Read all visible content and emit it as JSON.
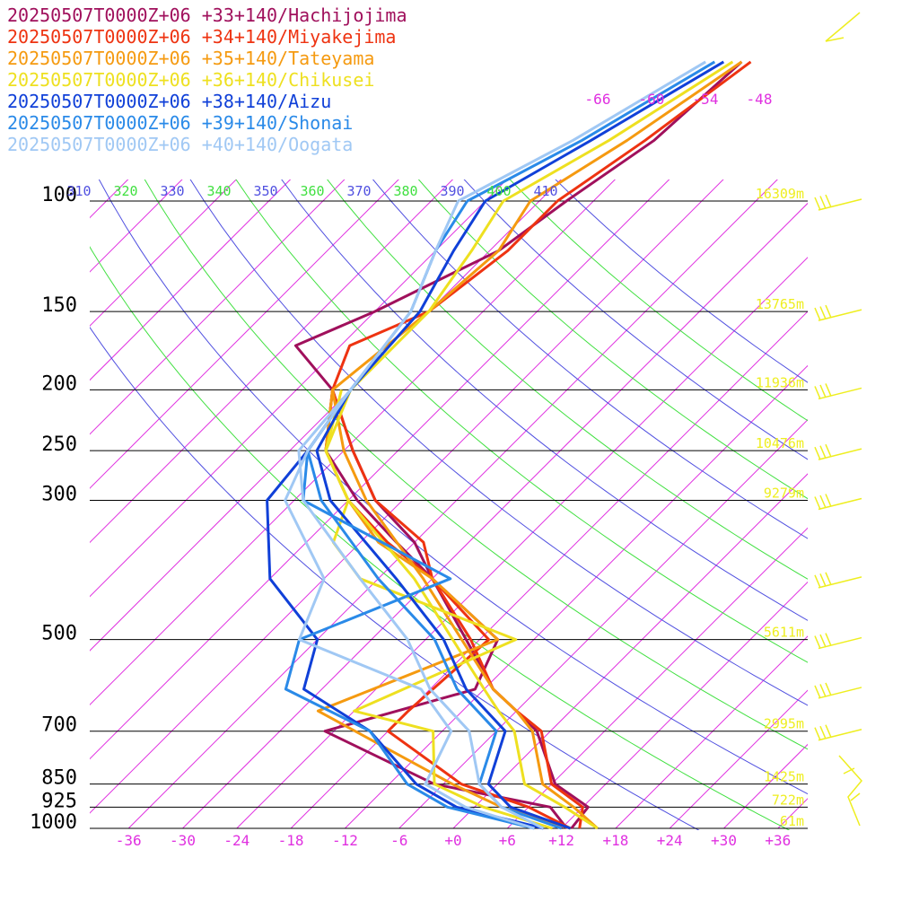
{
  "chart_data": {
    "type": "line",
    "chart_kind": "skew-T log-P sounding",
    "legend": [
      {
        "label": "20250507T0000Z+06 +33+140/Hachijojima",
        "color": "#a0105c"
      },
      {
        "label": "20250507T0000Z+06 +34+140/Miyakejima",
        "color": "#ee3311"
      },
      {
        "label": "20250507T0000Z+06 +35+140/Tateyama",
        "color": "#f59a10"
      },
      {
        "label": "20250507T0000Z+06 +36+140/Chikusei",
        "color": "#eee020"
      },
      {
        "label": "20250507T0000Z+06 +38+140/Aizu",
        "color": "#1040d8"
      },
      {
        "label": "20250507T0000Z+06 +39+140/Shonai",
        "color": "#2a8ae8"
      },
      {
        "label": "20250507T0000Z+06 +40+140/Oogata",
        "color": "#a0c8f4"
      }
    ],
    "pressure_levels": [
      100,
      150,
      200,
      250,
      300,
      500,
      700,
      850,
      925,
      1000
    ],
    "pressure_labels": [
      "100",
      "150",
      "200",
      "250",
      "300",
      "500",
      "700",
      "850",
      "925",
      "1000"
    ],
    "heights": [
      {
        "p": 100,
        "label": "16309m"
      },
      {
        "p": 150,
        "label": "13765m"
      },
      {
        "p": 200,
        "label": "11936m"
      },
      {
        "p": 250,
        "label": "10476m"
      },
      {
        "p": 300,
        "label": "9279m"
      },
      {
        "p": 500,
        "label": "5611m"
      },
      {
        "p": 700,
        "label": "2995m"
      },
      {
        "p": 850,
        "label": "1425m"
      },
      {
        "p": 925,
        "label": "722m"
      },
      {
        "p": 1000,
        "label": "61m"
      }
    ],
    "temperature_ticks": [
      -36,
      -30,
      -24,
      -18,
      -12,
      -6,
      0,
      6,
      12,
      18,
      24,
      30,
      36
    ],
    "temperature_tick_labels": [
      "-36",
      "-30",
      "-24",
      "-18",
      "-12",
      "-6",
      "+0",
      "+6",
      "+12",
      "+18",
      "+24",
      "+30",
      "+36"
    ],
    "upper_isotherm_labels": [
      "-66",
      "-60",
      "-54",
      "-48"
    ],
    "theta_labels": [
      "310",
      "320",
      "330",
      "340",
      "350",
      "360",
      "370",
      "380",
      "390",
      "400",
      "410"
    ],
    "series": [
      {
        "name": "20250507T0000Z+06 +33+140/Hachijojima",
        "color": "#a0105c",
        "temperature": [
          [
            1000,
            13.1
          ],
          [
            925,
            12.6
          ],
          [
            850,
            6.4
          ],
          [
            700,
            -1.5
          ],
          [
            650,
            -6
          ],
          [
            600,
            -11
          ],
          [
            500,
            -19.5
          ],
          [
            400,
            -30
          ],
          [
            350,
            -36
          ],
          [
            300,
            -45
          ],
          [
            250,
            -53
          ],
          [
            200,
            -62
          ],
          [
            170,
            -71
          ],
          [
            150,
            -66
          ],
          [
            120,
            -59
          ],
          [
            100,
            -57
          ],
          [
            80,
            -54
          ],
          [
            60,
            -53
          ]
        ],
        "dewpoint": [
          [
            1000,
            12.6
          ],
          [
            925,
            8.4
          ],
          [
            850,
            -7
          ],
          [
            700,
            -25
          ],
          [
            600,
            -13
          ],
          [
            500,
            -16
          ],
          [
            400,
            -30
          ],
          [
            350,
            -38
          ],
          [
            300,
            -47
          ],
          [
            250,
            -56
          ],
          [
            200,
            -62
          ]
        ]
      },
      {
        "name": "20250507T0000Z+06 +34+140/Miyakejima",
        "color": "#ee3311",
        "temperature": [
          [
            1000,
            14
          ],
          [
            925,
            12
          ],
          [
            850,
            6
          ],
          [
            700,
            -1
          ],
          [
            650,
            -6
          ],
          [
            600,
            -11
          ],
          [
            500,
            -19
          ],
          [
            400,
            -30
          ],
          [
            350,
            -35
          ],
          [
            300,
            -45
          ],
          [
            250,
            -53
          ],
          [
            200,
            -62
          ],
          [
            170,
            -65
          ],
          [
            150,
            -60
          ],
          [
            120,
            -58
          ],
          [
            100,
            -58
          ],
          [
            80,
            -55
          ],
          [
            60,
            -52
          ]
        ],
        "dewpoint": [
          [
            1000,
            13
          ],
          [
            925,
            6
          ],
          [
            850,
            -4
          ],
          [
            700,
            -18
          ],
          [
            650,
            -18
          ],
          [
            500,
            -17
          ],
          [
            400,
            -30
          ],
          [
            350,
            -39
          ],
          [
            300,
            -48
          ],
          [
            250,
            -56
          ],
          [
            200,
            -62
          ]
        ]
      },
      {
        "name": "20250507T0000Z+06 +35+140/Tateyama",
        "color": "#f59a10",
        "temperature": [
          [
            1000,
            16
          ],
          [
            925,
            11
          ],
          [
            850,
            5
          ],
          [
            700,
            -2
          ],
          [
            650,
            -6
          ],
          [
            600,
            -11
          ],
          [
            500,
            -20
          ],
          [
            400,
            -31
          ],
          [
            300,
            -46
          ],
          [
            250,
            -54
          ],
          [
            200,
            -62
          ],
          [
            150,
            -60
          ],
          [
            120,
            -59
          ],
          [
            100,
            -61
          ],
          [
            80,
            -57
          ],
          [
            60,
            -53
          ]
        ],
        "dewpoint": [
          [
            1000,
            13
          ],
          [
            925,
            3
          ],
          [
            850,
            -5
          ],
          [
            650,
            -28
          ],
          [
            500,
            -16
          ],
          [
            400,
            -30
          ],
          [
            350,
            -40
          ],
          [
            300,
            -48
          ],
          [
            250,
            -56
          ],
          [
            200,
            -62
          ]
        ]
      },
      {
        "name": "20250507T0000Z+06 +36+140/Chikusei",
        "color": "#eee020",
        "temperature": [
          [
            1000,
            16
          ],
          [
            925,
            10
          ],
          [
            850,
            3
          ],
          [
            700,
            -4
          ],
          [
            650,
            -8
          ],
          [
            600,
            -12
          ],
          [
            500,
            -21
          ],
          [
            400,
            -32
          ],
          [
            300,
            -48
          ],
          [
            250,
            -56
          ],
          [
            200,
            -60
          ],
          [
            150,
            -60
          ],
          [
            120,
            -62
          ],
          [
            100,
            -64
          ],
          [
            80,
            -59
          ],
          [
            60,
            -54
          ]
        ],
        "dewpoint": [
          [
            1000,
            11
          ],
          [
            925,
            1
          ],
          [
            850,
            -7
          ],
          [
            700,
            -13
          ],
          [
            650,
            -24
          ],
          [
            500,
            -14
          ],
          [
            400,
            -38
          ],
          [
            350,
            -45
          ],
          [
            300,
            -48
          ],
          [
            250,
            -56
          ],
          [
            200,
            -61
          ]
        ]
      },
      {
        "name": "20250507T0000Z+06 +38+140/Aizu",
        "color": "#1040d8",
        "temperature": [
          [
            1000,
            13
          ],
          [
            925,
            4
          ],
          [
            850,
            -1
          ],
          [
            700,
            -5
          ],
          [
            600,
            -14
          ],
          [
            500,
            -22
          ],
          [
            400,
            -34
          ],
          [
            300,
            -50
          ],
          [
            250,
            -57
          ],
          [
            200,
            -60
          ],
          [
            150,
            -61
          ],
          [
            120,
            -64
          ],
          [
            100,
            -66
          ],
          [
            80,
            -61
          ],
          [
            60,
            -55
          ]
        ],
        "dewpoint": [
          [
            1000,
            10
          ],
          [
            925,
            -2
          ],
          [
            850,
            -9
          ],
          [
            700,
            -20
          ],
          [
            600,
            -32
          ],
          [
            500,
            -36
          ],
          [
            400,
            -48
          ],
          [
            300,
            -57
          ],
          [
            250,
            -58
          ],
          [
            200,
            -60
          ]
        ]
      },
      {
        "name": "20250507T0000Z+06 +39+140/Shonai",
        "color": "#2a8ae8",
        "temperature": [
          [
            1000,
            12
          ],
          [
            925,
            3
          ],
          [
            850,
            -2
          ],
          [
            700,
            -6
          ],
          [
            600,
            -15
          ],
          [
            500,
            -23
          ],
          [
            400,
            -36
          ],
          [
            300,
            -51
          ],
          [
            250,
            -58
          ],
          [
            200,
            -60
          ],
          [
            150,
            -62
          ],
          [
            120,
            -66
          ],
          [
            100,
            -68
          ],
          [
            80,
            -62
          ],
          [
            60,
            -56
          ]
        ],
        "dewpoint": [
          [
            1000,
            9
          ],
          [
            925,
            -3
          ],
          [
            850,
            -10
          ],
          [
            700,
            -20
          ],
          [
            600,
            -34
          ],
          [
            500,
            -38
          ],
          [
            400,
            -28
          ],
          [
            300,
            -53
          ],
          [
            250,
            -58
          ],
          [
            200,
            -60
          ]
        ]
      },
      {
        "name": "20250507T0000Z+06 +40+140/Oogata",
        "color": "#a0c8f4",
        "temperature": [
          [
            1000,
            10
          ],
          [
            925,
            3
          ],
          [
            850,
            -2
          ],
          [
            700,
            -9
          ],
          [
            600,
            -18
          ],
          [
            500,
            -26
          ],
          [
            400,
            -38
          ],
          [
            300,
            -53
          ],
          [
            250,
            -59
          ],
          [
            200,
            -60
          ],
          [
            150,
            -62
          ],
          [
            120,
            -66
          ],
          [
            100,
            -69
          ],
          [
            80,
            -63
          ],
          [
            60,
            -57
          ]
        ],
        "dewpoint": [
          [
            1000,
            9
          ],
          [
            925,
            -1
          ],
          [
            850,
            -8
          ],
          [
            700,
            -11
          ],
          [
            600,
            -19
          ],
          [
            500,
            -38
          ],
          [
            400,
            -42
          ],
          [
            300,
            -55
          ],
          [
            250,
            -58
          ],
          [
            200,
            -60
          ]
        ]
      }
    ],
    "wind_barbs_color": "#eeee20",
    "isotherm_color": "#e030e0",
    "theta_colors": [
      "#5050e0",
      "#40e040"
    ],
    "grid": true
  }
}
